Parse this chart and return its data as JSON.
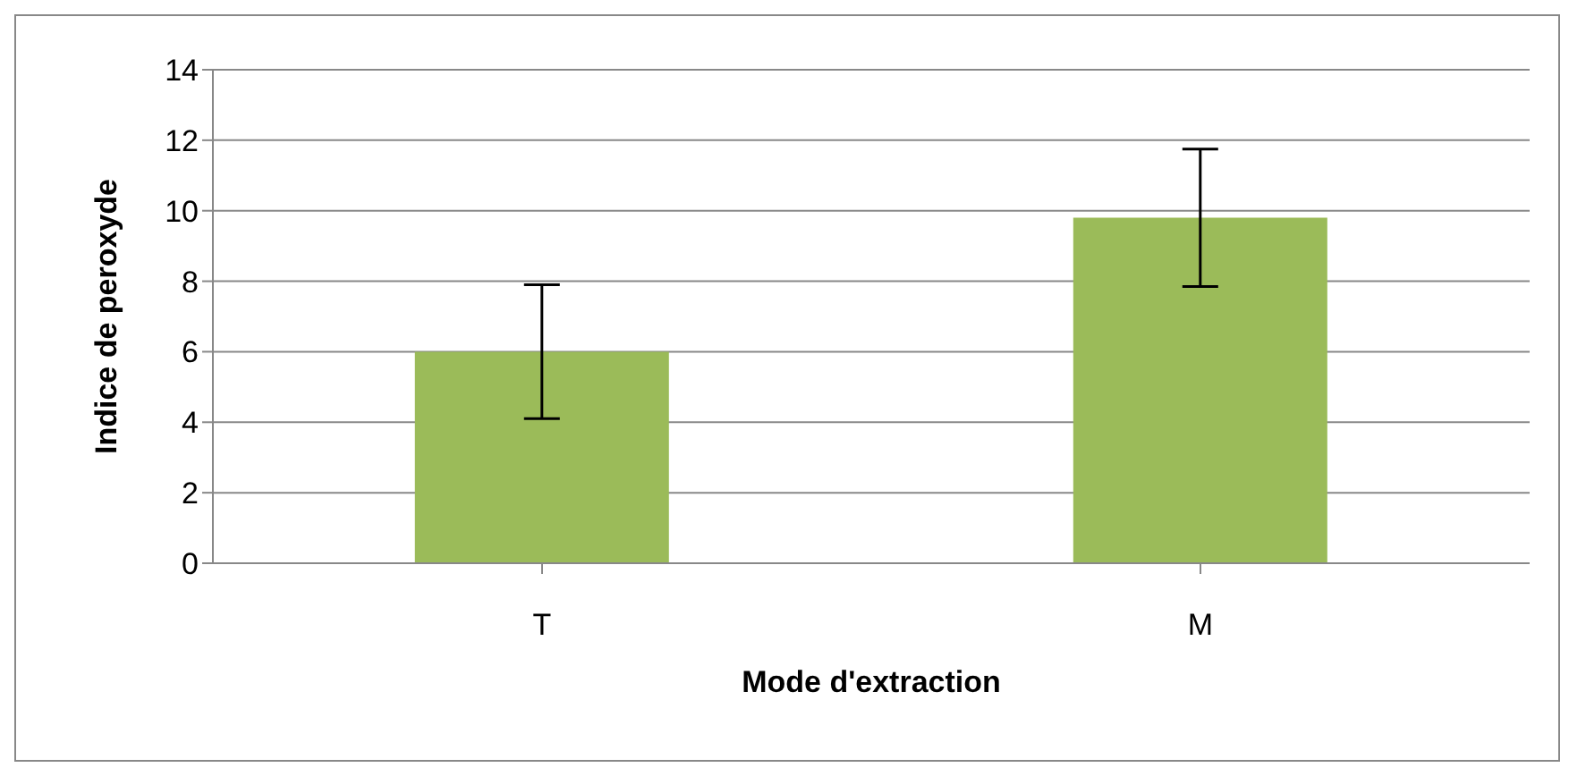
{
  "chart_data": {
    "type": "bar",
    "xlabel": "Mode d'extraction",
    "ylabel": "Indice de peroxyde",
    "categories": [
      "T",
      "M"
    ],
    "values": [
      6,
      9.8
    ],
    "errors": [
      1.9,
      1.95
    ],
    "color": "#9bbb59",
    "ylim": [
      0,
      14
    ],
    "yticks": [
      0,
      2,
      4,
      6,
      8,
      10,
      12,
      14
    ],
    "grid": "y",
    "legend": false
  }
}
